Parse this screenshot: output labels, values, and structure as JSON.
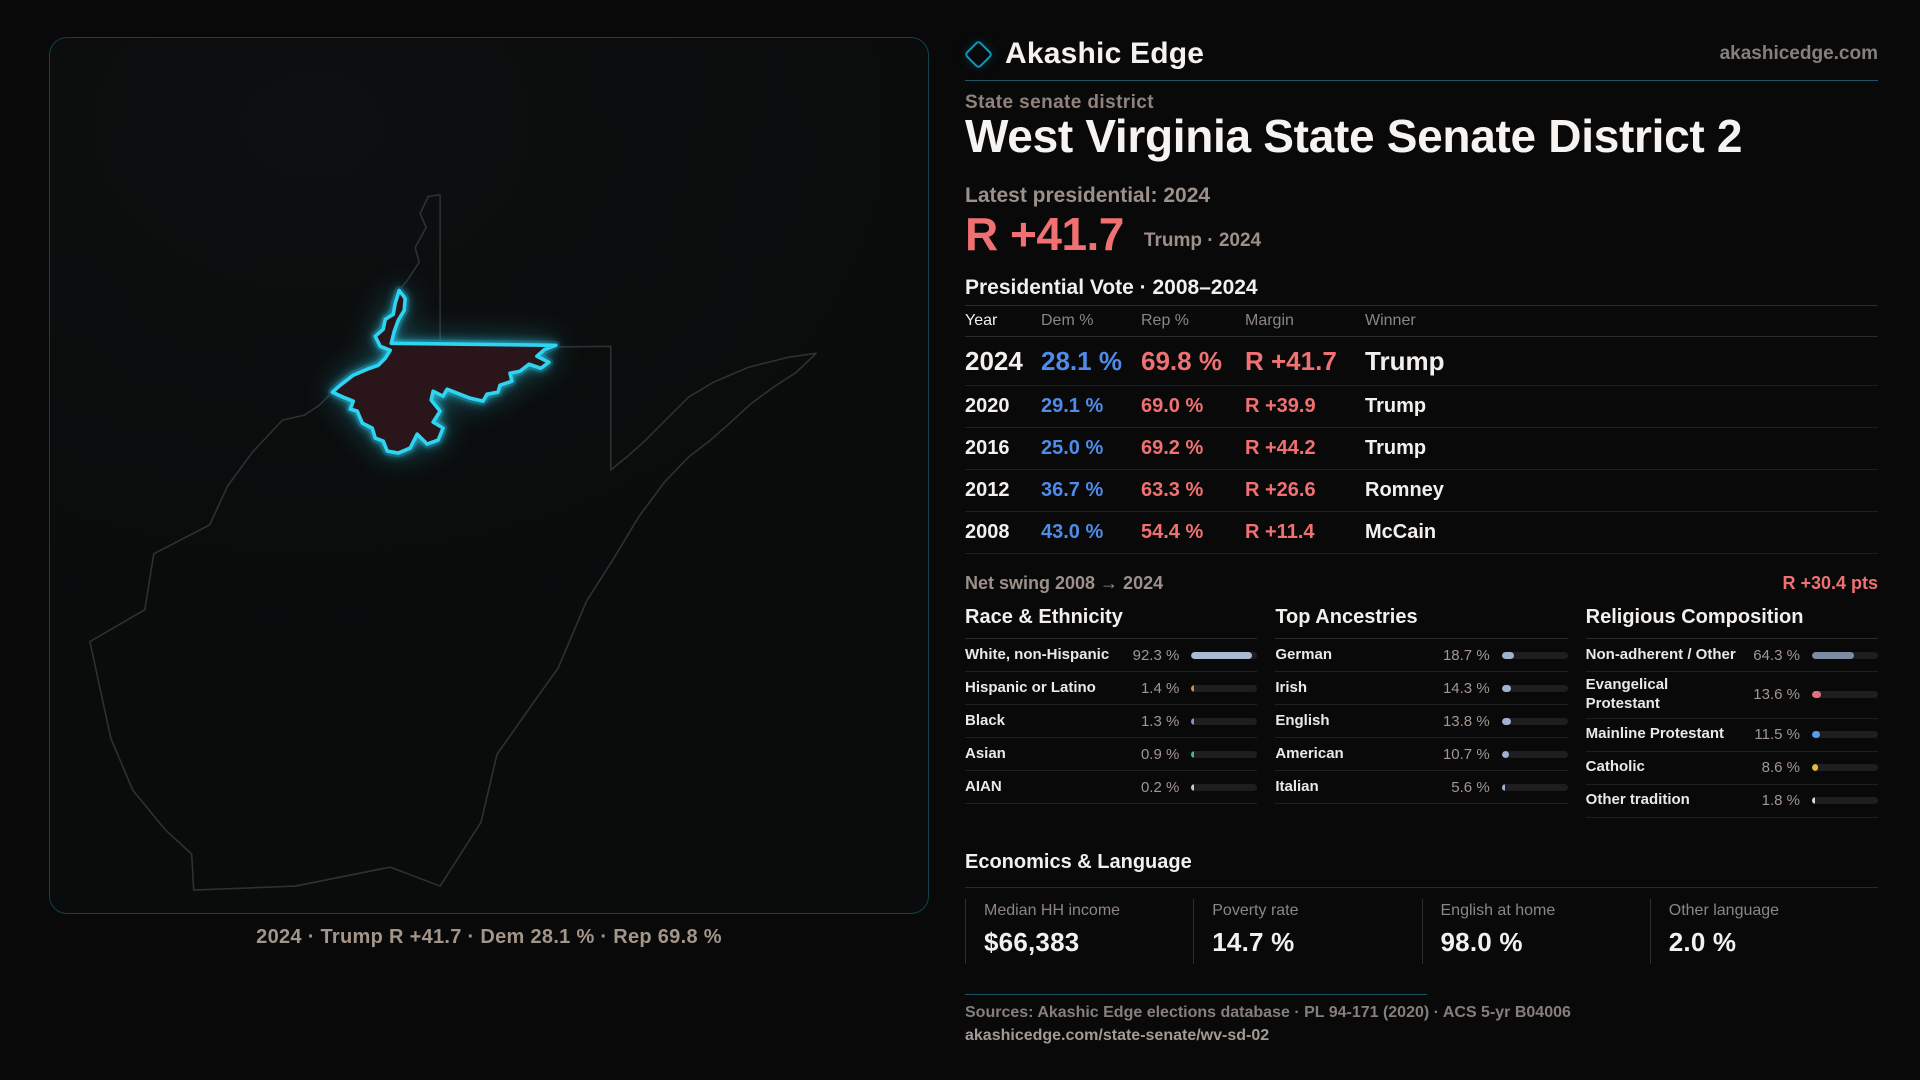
{
  "brand": {
    "name": "Akashic Edge",
    "site": "akashicedge.com"
  },
  "header": {
    "eyebrow": "State senate district",
    "title": "West Virginia State Senate District 2",
    "latest_label": "Latest presidential: 2024",
    "big_margin": "R +41.7",
    "big_margin_sub": "Trump · 2024"
  },
  "colors": {
    "accent_red": "#f17172",
    "accent_blue": "#4e8bea",
    "accent_cyan": "#2fd4f1"
  },
  "presidential": {
    "title": "Presidential Vote · 2008–2024",
    "columns": [
      "Year",
      "Dem %",
      "Rep %",
      "Margin",
      "Winner"
    ],
    "rows": [
      {
        "year": "2024",
        "dem": "28.1 %",
        "rep": "69.8 %",
        "margin": "R +41.7",
        "winner": "Trump",
        "highlight": true
      },
      {
        "year": "2020",
        "dem": "29.1 %",
        "rep": "69.0 %",
        "margin": "R +39.9",
        "winner": "Trump",
        "highlight": false
      },
      {
        "year": "2016",
        "dem": "25.0 %",
        "rep": "69.2 %",
        "margin": "R +44.2",
        "winner": "Trump",
        "highlight": false
      },
      {
        "year": "2012",
        "dem": "36.7 %",
        "rep": "63.3 %",
        "margin": "R +26.6",
        "winner": "Romney",
        "highlight": false
      },
      {
        "year": "2008",
        "dem": "43.0 %",
        "rep": "54.4 %",
        "margin": "R +11.4",
        "winner": "McCain",
        "highlight": false
      }
    ],
    "net_swing_label": "Net swing 2008 → 2024",
    "net_swing_value": "R +30.4 pts"
  },
  "demographics": {
    "groups": [
      {
        "title": "Race & Ethnicity",
        "rows": [
          {
            "label": "White, non-Hispanic",
            "value": "92.3 %",
            "pct": 92.3,
            "color": "#a9b9d4"
          },
          {
            "label": "Hispanic or Latino",
            "value": "1.4 %",
            "pct": 1.4,
            "color": "#d98c3f"
          },
          {
            "label": "Black",
            "value": "1.3 %",
            "pct": 1.3,
            "color": "#9286d9"
          },
          {
            "label": "Asian",
            "value": "0.9 %",
            "pct": 0.9,
            "color": "#48b98d"
          },
          {
            "label": "AIAN",
            "value": "0.2 %",
            "pct": 0.2,
            "color": "#c9c9c9"
          }
        ]
      },
      {
        "title": "Top Ancestries",
        "rows": [
          {
            "label": "German",
            "value": "18.7 %",
            "pct": 18.7,
            "color": "#9fb3cf"
          },
          {
            "label": "Irish",
            "value": "14.3 %",
            "pct": 14.3,
            "color": "#9fb3cf"
          },
          {
            "label": "English",
            "value": "13.8 %",
            "pct": 13.8,
            "color": "#9fb3cf"
          },
          {
            "label": "American",
            "value": "10.7 %",
            "pct": 10.7,
            "color": "#9fb3cf"
          },
          {
            "label": "Italian",
            "value": "5.6 %",
            "pct": 5.6,
            "color": "#9fb3cf"
          }
        ]
      },
      {
        "title": "Religious Composition",
        "rows": [
          {
            "label": "Non-adherent / Other",
            "value": "64.3 %",
            "pct": 64.3,
            "color": "#7e8ca3"
          },
          {
            "label": "Evangelical Protestant",
            "value": "13.6 %",
            "pct": 13.6,
            "color": "#e5707a"
          },
          {
            "label": "Mainline Protestant",
            "value": "11.5 %",
            "pct": 11.5,
            "color": "#4f9ef0"
          },
          {
            "label": "Catholic",
            "value": "8.6 %",
            "pct": 8.6,
            "color": "#e9b931"
          },
          {
            "label": "Other tradition",
            "value": "1.8 %",
            "pct": 1.8,
            "color": "#d6d6d6"
          }
        ]
      }
    ]
  },
  "economics": {
    "title": "Economics & Language",
    "stats": [
      {
        "label": "Median HH income",
        "value": "$66,383"
      },
      {
        "label": "Poverty rate",
        "value": "14.7 %"
      },
      {
        "label": "English at home",
        "value": "98.0 %"
      },
      {
        "label": "Other language",
        "value": "2.0 %"
      }
    ]
  },
  "footer": {
    "sources": "Sources: Akashic Edge elections database · PL 94-171 (2020) · ACS 5-yr B04006",
    "url": "akashicedge.com/state-senate/wv-sd-02"
  },
  "map": {
    "caption": "2024 · Trump R +41.7 · Dem 28.1 % · Rep 69.8 %"
  },
  "chart_data": [
    {
      "type": "table",
      "title": "Presidential Vote · 2008–2024",
      "columns": [
        "Year",
        "Dem %",
        "Rep %",
        "Margin",
        "Winner"
      ],
      "rows": [
        [
          2024,
          28.1,
          69.8,
          "R +41.7",
          "Trump"
        ],
        [
          2020,
          29.1,
          69.0,
          "R +39.9",
          "Trump"
        ],
        [
          2016,
          25.0,
          69.2,
          "R +44.2",
          "Trump"
        ],
        [
          2012,
          36.7,
          63.3,
          "R +26.6",
          "Romney"
        ],
        [
          2008,
          43.0,
          54.4,
          "R +11.4",
          "McCain"
        ]
      ],
      "net_swing_pts_R": 30.4
    },
    {
      "type": "bar",
      "title": "Race & Ethnicity",
      "unit": "%",
      "xlim": [
        0,
        100
      ],
      "categories": [
        "White, non-Hispanic",
        "Hispanic or Latino",
        "Black",
        "Asian",
        "AIAN"
      ],
      "values": [
        92.3,
        1.4,
        1.3,
        0.9,
        0.2
      ]
    },
    {
      "type": "bar",
      "title": "Top Ancestries",
      "unit": "%",
      "xlim": [
        0,
        100
      ],
      "categories": [
        "German",
        "Irish",
        "English",
        "American",
        "Italian"
      ],
      "values": [
        18.7,
        14.3,
        13.8,
        10.7,
        5.6
      ]
    },
    {
      "type": "bar",
      "title": "Religious Composition",
      "unit": "%",
      "xlim": [
        0,
        100
      ],
      "categories": [
        "Non-adherent / Other",
        "Evangelical Protestant",
        "Mainline Protestant",
        "Catholic",
        "Other tradition"
      ],
      "values": [
        64.3,
        13.6,
        11.5,
        8.6,
        1.8
      ]
    }
  ]
}
